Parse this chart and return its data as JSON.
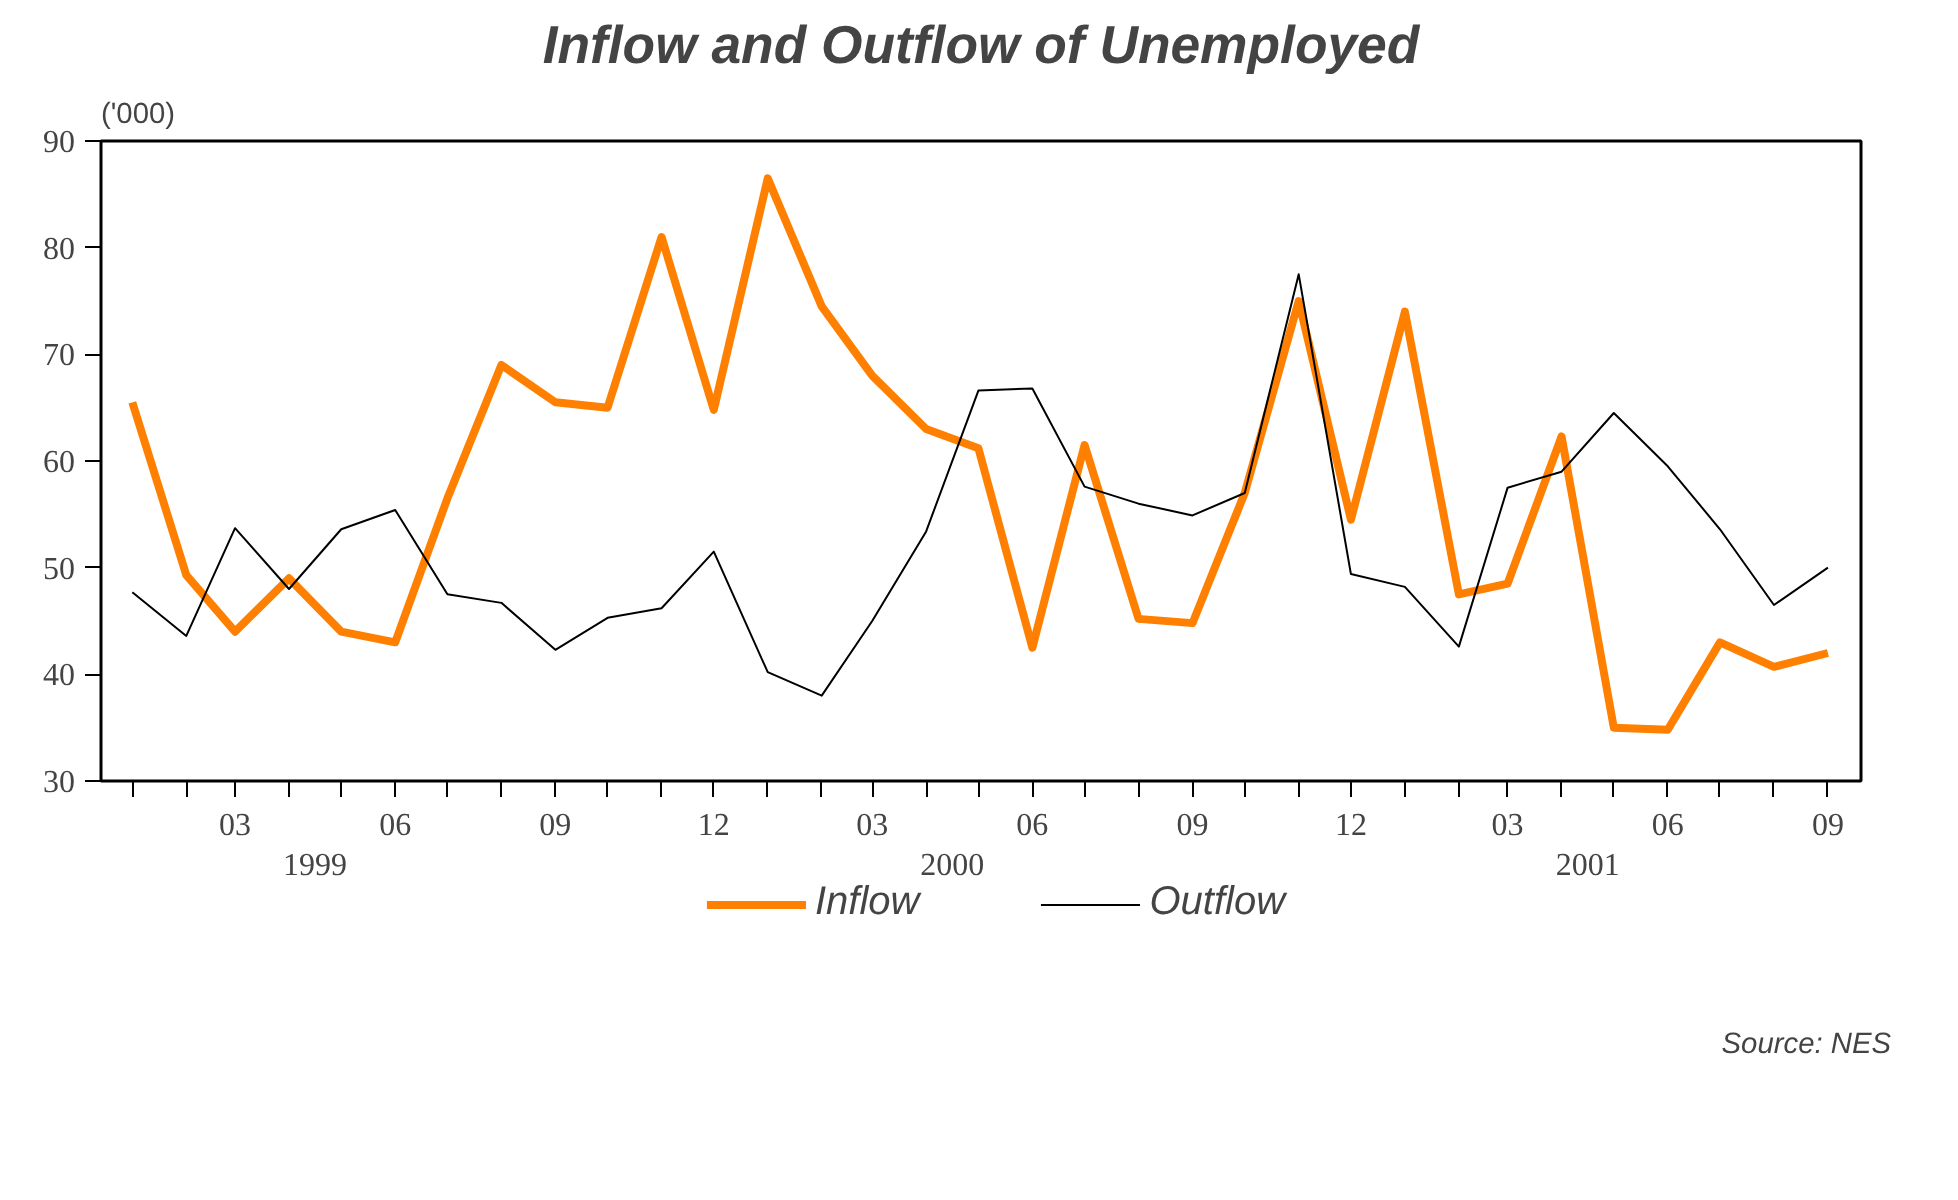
{
  "chart_data": {
    "type": "line",
    "title": "Inflow and Outflow of Unemployed",
    "ylabel": "('000)",
    "x": [
      "1999-01",
      "1999-02",
      "1999-03",
      "1999-04",
      "1999-05",
      "1999-06",
      "1999-07",
      "1999-08",
      "1999-09",
      "1999-10",
      "1999-11",
      "1999-12",
      "2000-01",
      "2000-02",
      "2000-03",
      "2000-04",
      "2000-05",
      "2000-06",
      "2000-07",
      "2000-08",
      "2000-09",
      "2000-10",
      "2000-11",
      "2000-12",
      "2001-01",
      "2001-02",
      "2001-03",
      "2001-04",
      "2001-05",
      "2001-06",
      "2001-07",
      "2001-08",
      "2001-09"
    ],
    "series": [
      {
        "name": "Inflow",
        "color": "#ff8000",
        "values": [
          65.5,
          49.3,
          44,
          49,
          44,
          43,
          56.5,
          69,
          65.5,
          65,
          81,
          64.8,
          86.5,
          74.5,
          68,
          63,
          61.2,
          42.5,
          61.5,
          45.2,
          44.8,
          57,
          75,
          54.5,
          74,
          47.5,
          48.5,
          62.3,
          35,
          34.8,
          43,
          40.7,
          42
        ]
      },
      {
        "name": "Outflow",
        "color": "#000000",
        "values": [
          47.7,
          43.6,
          53.7,
          48,
          53.6,
          55.4,
          47.5,
          46.7,
          42.3,
          45.3,
          46.2,
          51.5,
          40.2,
          38,
          45,
          53.4,
          66.6,
          66.8,
          57.6,
          56,
          54.9,
          57,
          77.5,
          49.4,
          48.2,
          42.6,
          57.5,
          59,
          64.5,
          59.5,
          53.6,
          46.5,
          50
        ]
      }
    ],
    "ylim": [
      30,
      90
    ],
    "yticks": [
      30,
      40,
      50,
      60,
      70,
      80,
      90
    ],
    "xlim": [
      "1998-12-14",
      "2001-09-20"
    ],
    "xticks": [
      {
        "value": "1999-01",
        "label": null
      },
      {
        "value": "1999-02",
        "label": null
      },
      {
        "value": "1999-03",
        "label": "03"
      },
      {
        "value": "1999-04",
        "label": null
      },
      {
        "value": "1999-05",
        "label": null
      },
      {
        "value": "1999-06",
        "label": "06"
      },
      {
        "value": "1999-07",
        "label": null
      },
      {
        "value": "1999-08",
        "label": null
      },
      {
        "value": "1999-09",
        "label": "09"
      },
      {
        "value": "1999-10",
        "label": null
      },
      {
        "value": "1999-11",
        "label": null
      },
      {
        "value": "1999-12",
        "label": "12"
      },
      {
        "value": "2000-01",
        "label": null
      },
      {
        "value": "2000-02",
        "label": null
      },
      {
        "value": "2000-03",
        "label": "03"
      },
      {
        "value": "2000-04",
        "label": null
      },
      {
        "value": "2000-05",
        "label": null
      },
      {
        "value": "2000-06",
        "label": "06"
      },
      {
        "value": "2000-07",
        "label": null
      },
      {
        "value": "2000-08",
        "label": null
      },
      {
        "value": "2000-09",
        "label": "09"
      },
      {
        "value": "2000-10",
        "label": null
      },
      {
        "value": "2000-11",
        "label": null
      },
      {
        "value": "2000-12",
        "label": "12"
      },
      {
        "value": "2001-01",
        "label": null
      },
      {
        "value": "2001-02",
        "label": null
      },
      {
        "value": "2001-03",
        "label": "03"
      },
      {
        "value": "2001-04",
        "label": null
      },
      {
        "value": "2001-05",
        "label": null
      },
      {
        "value": "2001-06",
        "label": "06"
      },
      {
        "value": "2001-07",
        "label": null
      },
      {
        "value": "2001-08",
        "label": null
      },
      {
        "value": "2001-09",
        "label": "09"
      }
    ],
    "annotations": [
      "1999",
      "2000",
      "2001",
      "Source: NES"
    ],
    "grid": false,
    "legend": "bottom",
    "marker": "none",
    "line_style": "solid"
  }
}
